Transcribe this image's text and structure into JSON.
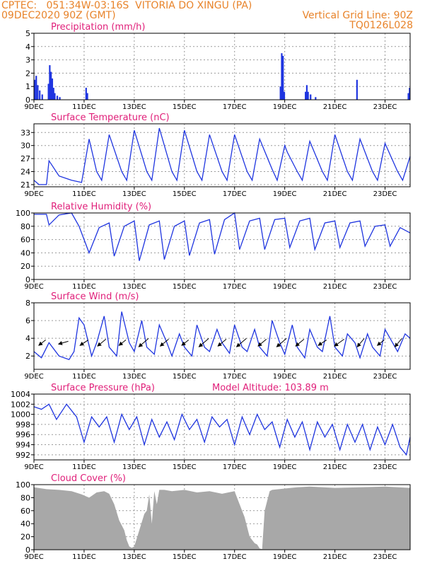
{
  "header": {
    "line1_left": "CPTEC:   051:34W-03:16S  VITORIA DO XINGU (PA)",
    "line2_left": "09DEC2020 90Z (GMT)",
    "line2_right": "Vertical Grid Line: 90Z",
    "line3_right": "TQ0126L028"
  },
  "colors": {
    "header": "#e8832a",
    "title": "#e0207a",
    "series": "#1f35e0",
    "cloud": "#a8a8a8",
    "grid": "#9a9a9a"
  },
  "chart_data": [
    {
      "type": "bar",
      "title": "Precipitation (mm/h)",
      "x_range_days": [
        0,
        15
      ],
      "xticks": [
        "9DEC",
        "11DEC",
        "13DEC",
        "15DEC",
        "17DEC",
        "19DEC",
        "21DEC",
        "23DEC"
      ],
      "xtick_days": [
        0,
        2,
        4,
        6,
        8,
        10,
        12,
        14
      ],
      "ylim": [
        0,
        5
      ],
      "yticks": [
        "0",
        "1",
        "2",
        "3",
        "4",
        "5"
      ],
      "ytick_values": [
        0,
        1,
        2,
        3,
        4,
        5
      ],
      "series": [
        {
          "name": "precipitation",
          "x": [
            0.0,
            0.06,
            0.12,
            0.2,
            0.3,
            0.55,
            0.6,
            0.65,
            0.7,
            0.75,
            0.8,
            0.9,
            1.0,
            2.05,
            2.1,
            9.8,
            9.85,
            9.9,
            9.95,
            10.8,
            10.85,
            10.9,
            11.0,
            11.2,
            12.85,
            14.9,
            14.95
          ],
          "values": [
            1.5,
            1.8,
            1.1,
            0.7,
            0.4,
            1.2,
            2.6,
            2.1,
            1.6,
            0.9,
            0.5,
            0.3,
            0.2,
            0.9,
            0.5,
            1.0,
            3.5,
            3.3,
            0.6,
            0.6,
            1.1,
            0.6,
            0.4,
            0.2,
            1.5,
            0.5,
            0.9
          ]
        }
      ]
    },
    {
      "type": "line",
      "title": "Surface Temperature (nC)",
      "x_range_days": [
        0,
        15
      ],
      "xticks": [
        "9DEC",
        "11DEC",
        "13DEC",
        "15DEC",
        "17DEC",
        "19DEC",
        "21DEC",
        "23DEC"
      ],
      "xtick_days": [
        0,
        2,
        4,
        6,
        8,
        10,
        12,
        14
      ],
      "ylim": [
        20.5,
        35
      ],
      "yticks": [
        "21",
        "24",
        "27",
        "30",
        "33"
      ],
      "ytick_values": [
        21,
        24,
        27,
        30,
        33
      ],
      "series": [
        {
          "name": "temperature",
          "x": [
            0.0,
            0.2,
            0.5,
            0.6,
            1.0,
            1.5,
            1.9,
            2.2,
            2.5,
            2.7,
            3.0,
            3.5,
            3.7,
            4.0,
            4.5,
            4.7,
            5.0,
            5.5,
            5.7,
            6.0,
            6.5,
            6.7,
            7.0,
            7.5,
            7.7,
            8.0,
            8.5,
            8.7,
            9.0,
            9.5,
            9.7,
            10.0,
            10.1,
            10.5,
            10.7,
            11.0,
            11.5,
            11.7,
            12.0,
            12.5,
            12.7,
            13.0,
            13.5,
            13.7,
            14.0,
            14.5,
            14.7,
            15.0
          ],
          "values": [
            22,
            21,
            21,
            26.5,
            23,
            22,
            21.5,
            31.5,
            24,
            22,
            32.5,
            24,
            22,
            33.5,
            24,
            22,
            34,
            24,
            22,
            33.5,
            24,
            22,
            32.5,
            24,
            22,
            32.5,
            24,
            22,
            31.5,
            24.5,
            22,
            30,
            28.5,
            24,
            22,
            31,
            24,
            22,
            32.5,
            24,
            22,
            31.5,
            24,
            22,
            30.5,
            24,
            22,
            27.5
          ]
        }
      ]
    },
    {
      "type": "line",
      "title": "Relative Humidity (%)",
      "x_range_days": [
        0,
        15
      ],
      "xticks": [
        "9DEC",
        "11DEC",
        "13DEC",
        "15DEC",
        "17DEC",
        "19DEC",
        "21DEC",
        "23DEC"
      ],
      "xtick_days": [
        0,
        2,
        4,
        6,
        8,
        10,
        12,
        14
      ],
      "ylim": [
        0,
        100
      ],
      "yticks": [
        "0",
        "20",
        "40",
        "60",
        "80",
        "100"
      ],
      "ytick_values": [
        0,
        20,
        40,
        60,
        80,
        100
      ],
      "series": [
        {
          "name": "humidity",
          "x": [
            0.0,
            0.5,
            0.6,
            1.0,
            1.5,
            1.8,
            2.2,
            2.6,
            3.0,
            3.2,
            3.6,
            4.0,
            4.2,
            4.6,
            5.0,
            5.2,
            5.6,
            6.0,
            6.2,
            6.6,
            7.0,
            7.2,
            7.6,
            8.0,
            8.2,
            8.6,
            9.0,
            9.2,
            9.6,
            10.0,
            10.2,
            10.6,
            11.0,
            11.2,
            11.6,
            12.0,
            12.2,
            12.6,
            13.0,
            13.2,
            13.6,
            14.0,
            14.2,
            14.6,
            15.0
          ],
          "values": [
            98,
            98,
            82,
            97,
            100,
            80,
            40,
            78,
            85,
            35,
            80,
            88,
            28,
            82,
            88,
            30,
            80,
            88,
            36,
            85,
            90,
            38,
            90,
            100,
            45,
            88,
            92,
            45,
            90,
            92,
            48,
            88,
            92,
            45,
            85,
            88,
            48,
            85,
            88,
            50,
            80,
            82,
            50,
            78,
            70
          ]
        }
      ]
    },
    {
      "type": "line",
      "title": "Surface Wind (m/s)",
      "x_range_days": [
        0,
        15
      ],
      "xticks": [
        "9DEC",
        "11DEC",
        "13DEC",
        "15DEC",
        "17DEC",
        "19DEC",
        "21DEC",
        "23DEC"
      ],
      "xtick_days": [
        0,
        2,
        4,
        6,
        8,
        10,
        12,
        14
      ],
      "ylim": [
        0.5,
        8
      ],
      "yticks": [
        "2",
        "4",
        "6",
        "8"
      ],
      "ytick_values": [
        2,
        4,
        6,
        8
      ],
      "series": [
        {
          "name": "wind_speed",
          "x": [
            0.0,
            0.3,
            0.6,
            1.0,
            1.4,
            1.6,
            1.8,
            2.0,
            2.3,
            2.5,
            2.8,
            3.0,
            3.3,
            3.5,
            3.8,
            4.0,
            4.3,
            4.5,
            4.8,
            5.0,
            5.3,
            5.5,
            5.8,
            6.0,
            6.3,
            6.5,
            6.8,
            7.0,
            7.3,
            7.5,
            7.8,
            8.0,
            8.3,
            8.5,
            8.8,
            9.0,
            9.3,
            9.5,
            9.8,
            10.0,
            10.3,
            10.5,
            10.8,
            11.0,
            11.3,
            11.5,
            11.8,
            12.0,
            12.3,
            12.5,
            12.8,
            13.0,
            13.3,
            13.5,
            13.8,
            14.0,
            14.3,
            14.5,
            14.8,
            15.0
          ],
          "values": [
            2.5,
            1.8,
            3.5,
            2.0,
            1.6,
            2.5,
            6.3,
            5.5,
            2.0,
            3.5,
            6.5,
            3.0,
            2.0,
            7.0,
            3.5,
            2.5,
            6.0,
            3.0,
            2.2,
            5.5,
            3.5,
            2.0,
            4.5,
            3.0,
            2.0,
            5.5,
            3.0,
            2.5,
            5.0,
            3.5,
            2.3,
            5.5,
            3.0,
            2.5,
            5.0,
            3.0,
            2.0,
            6.0,
            3.5,
            2.2,
            5.5,
            3.0,
            1.8,
            5.0,
            3.0,
            2.5,
            6.5,
            3.0,
            2.0,
            4.5,
            3.5,
            1.8,
            4.5,
            3.0,
            2.0,
            5.0,
            3.5,
            2.5,
            4.5,
            4.0
          ]
        }
      ],
      "wind_arrows": [
        {
          "day": 0.3,
          "dx": -10,
          "dy": 8
        },
        {
          "day": 1.2,
          "dx": -14,
          "dy": 4
        },
        {
          "day": 2.0,
          "dx": -12,
          "dy": 8
        },
        {
          "day": 2.7,
          "dx": -12,
          "dy": 10
        },
        {
          "day": 3.5,
          "dx": -10,
          "dy": 8
        },
        {
          "day": 4.4,
          "dx": -14,
          "dy": 12
        },
        {
          "day": 5.2,
          "dx": -12,
          "dy": 10
        },
        {
          "day": 6.0,
          "dx": -10,
          "dy": 8
        },
        {
          "day": 6.8,
          "dx": -14,
          "dy": 12
        },
        {
          "day": 7.5,
          "dx": -12,
          "dy": 10
        },
        {
          "day": 8.3,
          "dx": -14,
          "dy": 12
        },
        {
          "day": 9.1,
          "dx": -12,
          "dy": 10
        },
        {
          "day": 9.9,
          "dx": -14,
          "dy": 12
        },
        {
          "day": 10.6,
          "dx": -12,
          "dy": 10
        },
        {
          "day": 11.5,
          "dx": -12,
          "dy": 8
        },
        {
          "day": 12.2,
          "dx": -14,
          "dy": 10
        },
        {
          "day": 13.0,
          "dx": -10,
          "dy": 12
        },
        {
          "day": 13.8,
          "dx": -10,
          "dy": 8
        },
        {
          "day": 14.5,
          "dx": -10,
          "dy": 12
        }
      ]
    },
    {
      "type": "line",
      "title": "Surface Pressure (hPa)",
      "annotation": "Model Altitude: 103.89 m",
      "x_range_days": [
        0,
        15
      ],
      "xticks": [
        "9DEC",
        "11DEC",
        "13DEC",
        "15DEC",
        "17DEC",
        "19DEC",
        "21DEC",
        "23DEC"
      ],
      "xtick_days": [
        0,
        2,
        4,
        6,
        8,
        10,
        12,
        14
      ],
      "ylim": [
        991,
        1004
      ],
      "yticks": [
        "992",
        "994",
        "996",
        "998",
        "1000",
        "1002",
        "1004"
      ],
      "ytick_values": [
        992,
        994,
        996,
        998,
        1000,
        1002,
        1004
      ],
      "series": [
        {
          "name": "pressure",
          "x": [
            0.0,
            0.3,
            0.6,
            0.9,
            1.3,
            1.7,
            2.0,
            2.3,
            2.6,
            2.9,
            3.2,
            3.5,
            3.8,
            4.1,
            4.4,
            4.7,
            5.0,
            5.3,
            5.6,
            5.9,
            6.2,
            6.5,
            6.8,
            7.1,
            7.4,
            7.7,
            8.0,
            8.3,
            8.6,
            8.9,
            9.2,
            9.5,
            9.8,
            10.1,
            10.4,
            10.7,
            11.0,
            11.3,
            11.6,
            11.9,
            12.2,
            12.5,
            12.8,
            13.1,
            13.4,
            13.7,
            14.0,
            14.3,
            14.6,
            14.85,
            15.0
          ],
          "values": [
            1001.5,
            1001.0,
            1002.0,
            999.0,
            1002.0,
            999.5,
            994.5,
            999.5,
            997.5,
            999.5,
            994.5,
            1000.0,
            997.0,
            999.5,
            994.0,
            999.0,
            995.5,
            998.5,
            995.0,
            1000.0,
            997.0,
            999.0,
            994.5,
            999.5,
            997.5,
            999.0,
            994.0,
            999.5,
            996.0,
            1000.0,
            997.0,
            998.5,
            993.5,
            999.0,
            995.5,
            998.5,
            993.0,
            998.5,
            995.5,
            998.0,
            993.0,
            998.0,
            994.5,
            998.0,
            993.0,
            997.5,
            994.0,
            998.0,
            993.5,
            992.0,
            995.5
          ]
        }
      ]
    },
    {
      "type": "area",
      "title": "Cloud Cover (%)",
      "x_range_days": [
        0,
        15
      ],
      "xticks": [
        "9DEC",
        "11DEC",
        "13DEC",
        "15DEC",
        "17DEC",
        "19DEC",
        "21DEC",
        "23DEC"
      ],
      "xtick_days": [
        0,
        2,
        4,
        6,
        8,
        10,
        12,
        14
      ],
      "ylim": [
        0,
        100
      ],
      "yticks": [
        "0",
        "20",
        "40",
        "60",
        "80",
        "100"
      ],
      "ytick_values": [
        0,
        20,
        40,
        60,
        80,
        100
      ],
      "series": [
        {
          "name": "cloud_cover",
          "x": [
            0.0,
            0.5,
            1.0,
            1.5,
            1.9,
            2.2,
            2.5,
            2.8,
            3.0,
            3.2,
            3.4,
            3.6,
            3.7,
            3.8,
            3.9,
            4.0,
            4.2,
            4.4,
            4.5,
            4.6,
            4.7,
            4.8,
            4.9,
            5.0,
            5.2,
            5.5,
            6.0,
            6.5,
            7.0,
            7.5,
            8.0,
            8.2,
            8.4,
            8.6,
            8.8,
            8.9,
            9.0,
            9.1,
            9.2,
            9.3,
            9.4,
            9.5,
            10.0,
            10.5,
            11.0,
            12.0,
            13.0,
            14.0,
            15.0
          ],
          "values": [
            96,
            93,
            92,
            90,
            85,
            80,
            88,
            90,
            86,
            70,
            45,
            30,
            15,
            5,
            3,
            5,
            30,
            55,
            60,
            85,
            40,
            90,
            70,
            92,
            92,
            90,
            92,
            88,
            90,
            86,
            90,
            70,
            50,
            20,
            10,
            8,
            2,
            1,
            60,
            75,
            90,
            92,
            94,
            96,
            97,
            95,
            96,
            97,
            95
          ]
        }
      ]
    }
  ]
}
